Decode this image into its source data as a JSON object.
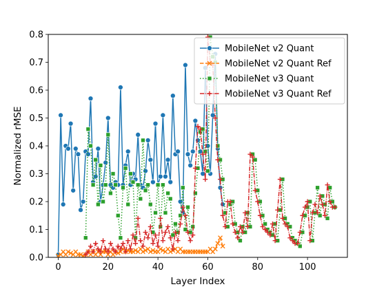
{
  "chart_data": {
    "type": "line",
    "xlabel": "Layer Index",
    "ylabel": "Normalized rMSE",
    "xlim": [
      -4,
      116
    ],
    "ylim": [
      0,
      0.8
    ],
    "xticks": [
      0,
      20,
      40,
      60,
      80,
      100
    ],
    "yticks": [
      0.0,
      0.1,
      0.2,
      0.3,
      0.4,
      0.5,
      0.6,
      0.7,
      0.8
    ],
    "grid": false,
    "legend_position": "top-right",
    "series": [
      {
        "name": "MobileNet v2 Quant",
        "color": "#1f77b4",
        "line_style": "solid",
        "marker": "circle",
        "x": [
          0,
          1,
          2,
          3,
          4,
          5,
          6,
          7,
          8,
          9,
          10,
          11,
          12,
          13,
          14,
          15,
          16,
          17,
          18,
          19,
          20,
          21,
          22,
          23,
          24,
          25,
          26,
          27,
          28,
          29,
          30,
          31,
          32,
          33,
          34,
          35,
          36,
          37,
          38,
          39,
          40,
          41,
          42,
          43,
          44,
          45,
          46,
          47,
          48,
          49,
          50,
          51,
          52,
          53,
          54,
          55,
          56,
          57,
          58,
          59,
          60,
          61,
          62,
          63,
          64,
          65,
          66
        ],
        "y": [
          0.01,
          0.51,
          0.19,
          0.4,
          0.39,
          0.48,
          0.24,
          0.39,
          0.37,
          0.17,
          0.2,
          0.38,
          0.37,
          0.57,
          0.27,
          0.29,
          0.39,
          0.2,
          0.26,
          0.34,
          0.5,
          0.26,
          0.25,
          0.27,
          0.26,
          0.61,
          0.26,
          0.33,
          0.38,
          0.26,
          0.3,
          0.28,
          0.44,
          0.26,
          0.25,
          0.31,
          0.42,
          0.35,
          0.27,
          0.48,
          0.26,
          0.29,
          0.51,
          0.29,
          0.35,
          0.27,
          0.58,
          0.37,
          0.38,
          0.2,
          0.16,
          0.69,
          0.37,
          0.33,
          0.38,
          0.49,
          0.42,
          0.38,
          0.3,
          0.68,
          0.4,
          0.3,
          0.51,
          0.73,
          0.39,
          0.25,
          0.19
        ]
      },
      {
        "name": "MobileNet v2 Quant Ref",
        "color": "#ff7f0e",
        "line_style": "dashed",
        "marker": "x",
        "x": [
          0,
          1,
          2,
          3,
          4,
          5,
          6,
          7,
          8,
          9,
          10,
          11,
          12,
          13,
          14,
          15,
          16,
          17,
          18,
          19,
          20,
          21,
          22,
          23,
          24,
          25,
          26,
          27,
          28,
          29,
          30,
          31,
          32,
          33,
          34,
          35,
          36,
          37,
          38,
          39,
          40,
          41,
          42,
          43,
          44,
          45,
          46,
          47,
          48,
          49,
          50,
          51,
          52,
          53,
          54,
          55,
          56,
          57,
          58,
          59,
          60,
          61,
          62,
          63,
          64,
          65,
          66
        ],
        "y": [
          0.005,
          0.01,
          0.02,
          0.01,
          0.02,
          0.015,
          0.01,
          0.02,
          0.01,
          0.01,
          0.005,
          0.01,
          0.02,
          0.01,
          0.02,
          0.01,
          0.02,
          0.01,
          0.02,
          0.02,
          0.01,
          0.02,
          0.01,
          0.02,
          0.015,
          0.02,
          0.03,
          0.02,
          0.025,
          0.02,
          0.02,
          0.025,
          0.02,
          0.03,
          0.02,
          0.025,
          0.03,
          0.02,
          0.025,
          0.02,
          0.02,
          0.03,
          0.025,
          0.02,
          0.03,
          0.02,
          0.025,
          0.03,
          0.02,
          0.03,
          0.02,
          0.02,
          0.02,
          0.02,
          0.02,
          0.02,
          0.02,
          0.02,
          0.02,
          0.02,
          0.02,
          0.03,
          0.02,
          0.03,
          0.05,
          0.07,
          0.04
        ]
      },
      {
        "name": "MobileNet v3 Quant",
        "color": "#2ca02c",
        "line_style": "dotted",
        "marker": "square",
        "x": [
          11,
          12,
          13,
          14,
          15,
          16,
          17,
          18,
          19,
          20,
          21,
          22,
          23,
          24,
          25,
          26,
          27,
          28,
          29,
          30,
          31,
          32,
          33,
          34,
          35,
          36,
          37,
          38,
          39,
          40,
          41,
          42,
          43,
          44,
          45,
          46,
          47,
          48,
          49,
          50,
          51,
          52,
          53,
          54,
          55,
          56,
          57,
          58,
          59,
          60,
          61,
          62,
          63,
          64,
          65,
          66,
          67,
          68,
          69,
          70,
          71,
          72,
          73,
          74,
          75,
          76,
          77,
          78,
          79,
          80,
          81,
          82,
          83,
          84,
          85,
          86,
          87,
          88,
          89,
          90,
          91,
          92,
          93,
          94,
          95,
          96,
          97,
          98,
          99,
          100,
          101,
          102,
          103,
          104,
          105,
          106,
          107,
          108,
          109,
          110,
          111
        ],
        "y": [
          0.07,
          0.46,
          0.4,
          0.26,
          0.35,
          0.19,
          0.33,
          0.2,
          0.26,
          0.44,
          0.23,
          0.3,
          0.26,
          0.15,
          0.07,
          0.25,
          0.32,
          0.19,
          0.3,
          0.27,
          0.07,
          0.26,
          0.21,
          0.42,
          0.24,
          0.26,
          0.19,
          0.09,
          0.16,
          0.26,
          0.11,
          0.26,
          0.16,
          0.23,
          0.21,
          0.08,
          0.12,
          0.09,
          0.15,
          0.25,
          0.1,
          0.18,
          0.09,
          0.11,
          0.23,
          0.32,
          0.45,
          0.46,
          0.38,
          0.31,
          0.79,
          0.72,
          0.7,
          0.4,
          0.35,
          0.28,
          0.16,
          0.11,
          0.19,
          0.2,
          0.12,
          0.09,
          0.06,
          0.11,
          0.09,
          0.16,
          0.11,
          0.37,
          0.35,
          0.24,
          0.2,
          0.15,
          0.12,
          0.1,
          0.09,
          0.08,
          0.12,
          0.06,
          0.17,
          0.28,
          0.14,
          0.12,
          0.11,
          0.07,
          0.06,
          0.05,
          0.04,
          0.09,
          0.15,
          0.18,
          0.2,
          0.06,
          0.16,
          0.25,
          0.15,
          0.22,
          0.19,
          0.14,
          0.25,
          0.2,
          0.18
        ]
      },
      {
        "name": "MobileNet v3 Quant Ref",
        "color": "#d62728",
        "line_style": "dashdot",
        "marker": "plus",
        "x": [
          11,
          12,
          13,
          14,
          15,
          16,
          17,
          18,
          19,
          20,
          21,
          22,
          23,
          24,
          25,
          26,
          27,
          28,
          29,
          30,
          31,
          32,
          33,
          34,
          35,
          36,
          37,
          38,
          39,
          40,
          41,
          42,
          43,
          44,
          45,
          46,
          47,
          48,
          49,
          50,
          51,
          52,
          53,
          54,
          55,
          56,
          57,
          58,
          59,
          60,
          61,
          62,
          63,
          64,
          65,
          66,
          67,
          68,
          69,
          70,
          71,
          72,
          73,
          74,
          75,
          76,
          77,
          78,
          79,
          80,
          81,
          82,
          83,
          84,
          85,
          86,
          87,
          88,
          89,
          90,
          91,
          92,
          93,
          94,
          95,
          96,
          97,
          98,
          99,
          100,
          101,
          102,
          103,
          104,
          105,
          106,
          107,
          108,
          109,
          110,
          111
        ],
        "y": [
          0.01,
          0.02,
          0.04,
          0.02,
          0.05,
          0.03,
          0.02,
          0.06,
          0.03,
          0.02,
          0.05,
          0.03,
          0.02,
          0.04,
          0.03,
          0.05,
          0.02,
          0.06,
          0.03,
          0.08,
          0.05,
          0.14,
          0.06,
          0.04,
          0.09,
          0.07,
          0.11,
          0.05,
          0.08,
          0.04,
          0.14,
          0.06,
          0.09,
          0.11,
          0.07,
          0.03,
          0.09,
          0.06,
          0.12,
          0.18,
          0.15,
          0.09,
          0.06,
          0.08,
          0.32,
          0.47,
          0.46,
          0.37,
          0.28,
          0.79,
          0.7,
          0.69,
          0.5,
          0.35,
          0.28,
          0.15,
          0.11,
          0.2,
          0.2,
          0.12,
          0.09,
          0.07,
          0.11,
          0.09,
          0.16,
          0.11,
          0.37,
          0.36,
          0.24,
          0.2,
          0.15,
          0.11,
          0.1,
          0.09,
          0.08,
          0.12,
          0.06,
          0.17,
          0.28,
          0.14,
          0.12,
          0.11,
          0.07,
          0.06,
          0.05,
          0.05,
          0.09,
          0.15,
          0.18,
          0.2,
          0.06,
          0.16,
          0.19,
          0.16,
          0.22,
          0.19,
          0.15,
          0.26,
          0.2,
          0.18,
          0.18
        ]
      }
    ]
  }
}
